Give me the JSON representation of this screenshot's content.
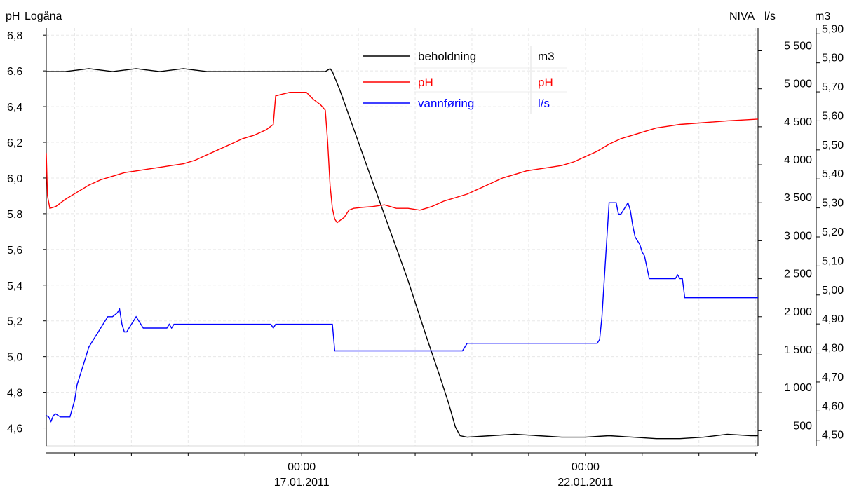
{
  "header": {
    "ph_unit": "pH",
    "station": "Logåna",
    "niva_label": "NIVA",
    "ls_unit": "l/s",
    "m3_unit": "m3"
  },
  "chart_data": {
    "type": "line",
    "x_unit": "hours",
    "x_ticks": [
      {
        "x": 0,
        "time": "00:00",
        "date": "17.01.2011"
      },
      {
        "x": 120,
        "time": "00:00",
        "date": "22.01.2011"
      }
    ],
    "x_range": [
      -108,
      193
    ],
    "axes": {
      "ph": {
        "range": [
          4.5,
          6.84
        ],
        "ticks": [
          "4,6",
          "4,8",
          "5,0",
          "5,2",
          "5,4",
          "5,6",
          "5,8",
          "6,0",
          "6,2",
          "6,4",
          "6,6",
          "6,8"
        ],
        "tick_values": [
          4.6,
          4.8,
          5.0,
          5.2,
          5.4,
          5.6,
          5.8,
          6.0,
          6.2,
          6.4,
          6.6,
          6.8
        ]
      },
      "flow": {
        "range": [
          300,
          5800
        ],
        "ticks": [
          "500",
          "1 000",
          "1 500",
          "2 000",
          "2 500",
          "3 000",
          "3 500",
          "4 000",
          "4 500",
          "5 000",
          "5 500"
        ],
        "tick_values": [
          500,
          1000,
          1500,
          2000,
          2500,
          3000,
          3500,
          4000,
          4500,
          5000,
          5500
        ]
      },
      "m3": {
        "range": [
          4.48,
          5.92
        ],
        "ticks": [
          "4,50",
          "4,60",
          "4,70",
          "4,80",
          "4,90",
          "5,00",
          "5,10",
          "5,20",
          "5,30",
          "5,40",
          "5,50",
          "5,60",
          "5,70",
          "5,80",
          "5,90"
        ],
        "tick_values": [
          4.5,
          4.6,
          4.7,
          4.8,
          4.9,
          5.0,
          5.1,
          5.2,
          5.3,
          5.4,
          5.5,
          5.6,
          5.7,
          5.8,
          5.9
        ]
      }
    },
    "grid": true,
    "legend_position": "top-center",
    "series": [
      {
        "name": "beholdning",
        "unit": "m3",
        "axis": "m3",
        "color": "#000000",
        "points": [
          [
            -108,
            5.77
          ],
          [
            -100,
            5.77
          ],
          [
            -90,
            5.78
          ],
          [
            -80,
            5.77
          ],
          [
            -70,
            5.78
          ],
          [
            -60,
            5.77
          ],
          [
            -50,
            5.78
          ],
          [
            -40,
            5.77
          ],
          [
            -30,
            5.77
          ],
          [
            -20,
            5.77
          ],
          [
            -10,
            5.77
          ],
          [
            0,
            5.77
          ],
          [
            10,
            5.77
          ],
          [
            11,
            5.775
          ],
          [
            12,
            5.78
          ],
          [
            13,
            5.77
          ],
          [
            16,
            5.71
          ],
          [
            30,
            5.39
          ],
          [
            45,
            5.05
          ],
          [
            53,
            4.85
          ],
          [
            58,
            4.73
          ],
          [
            62,
            4.63
          ],
          [
            65,
            4.545
          ],
          [
            67,
            4.515
          ],
          [
            70,
            4.51
          ],
          [
            80,
            4.515
          ],
          [
            90,
            4.52
          ],
          [
            100,
            4.515
          ],
          [
            110,
            4.51
          ],
          [
            120,
            4.51
          ],
          [
            130,
            4.515
          ],
          [
            140,
            4.51
          ],
          [
            150,
            4.505
          ],
          [
            160,
            4.505
          ],
          [
            170,
            4.51
          ],
          [
            180,
            4.52
          ],
          [
            190,
            4.515
          ],
          [
            193,
            4.515
          ]
        ]
      },
      {
        "name": "pH",
        "unit": "pH",
        "axis": "ph",
        "color": "#ff0000",
        "points": [
          [
            -108,
            6.14
          ],
          [
            -107.5,
            5.9
          ],
          [
            -106.5,
            5.83
          ],
          [
            -104,
            5.84
          ],
          [
            -100,
            5.88
          ],
          [
            -95,
            5.92
          ],
          [
            -90,
            5.96
          ],
          [
            -85,
            5.99
          ],
          [
            -80,
            6.01
          ],
          [
            -75,
            6.03
          ],
          [
            -70,
            6.04
          ],
          [
            -65,
            6.05
          ],
          [
            -60,
            6.06
          ],
          [
            -55,
            6.07
          ],
          [
            -50,
            6.08
          ],
          [
            -45,
            6.1
          ],
          [
            -40,
            6.13
          ],
          [
            -35,
            6.16
          ],
          [
            -30,
            6.19
          ],
          [
            -25,
            6.22
          ],
          [
            -20,
            6.24
          ],
          [
            -15,
            6.27
          ],
          [
            -12,
            6.3
          ],
          [
            -11,
            6.46
          ],
          [
            -8,
            6.47
          ],
          [
            -5,
            6.48
          ],
          [
            2,
            6.48
          ],
          [
            5,
            6.44
          ],
          [
            8,
            6.41
          ],
          [
            10,
            6.38
          ],
          [
            11,
            6.2
          ],
          [
            12,
            5.96
          ],
          [
            13,
            5.83
          ],
          [
            14,
            5.77
          ],
          [
            15,
            5.75
          ],
          [
            16,
            5.76
          ],
          [
            18,
            5.78
          ],
          [
            20,
            5.82
          ],
          [
            22,
            5.83
          ],
          [
            25,
            5.835
          ],
          [
            30,
            5.84
          ],
          [
            35,
            5.85
          ],
          [
            40,
            5.83
          ],
          [
            45,
            5.83
          ],
          [
            50,
            5.82
          ],
          [
            55,
            5.84
          ],
          [
            60,
            5.87
          ],
          [
            65,
            5.89
          ],
          [
            70,
            5.91
          ],
          [
            75,
            5.94
          ],
          [
            80,
            5.97
          ],
          [
            85,
            6.0
          ],
          [
            90,
            6.02
          ],
          [
            95,
            6.04
          ],
          [
            100,
            6.05
          ],
          [
            105,
            6.06
          ],
          [
            110,
            6.07
          ],
          [
            115,
            6.09
          ],
          [
            120,
            6.12
          ],
          [
            125,
            6.15
          ],
          [
            130,
            6.19
          ],
          [
            135,
            6.22
          ],
          [
            140,
            6.24
          ],
          [
            145,
            6.26
          ],
          [
            150,
            6.28
          ],
          [
            155,
            6.29
          ],
          [
            160,
            6.3
          ],
          [
            170,
            6.31
          ],
          [
            180,
            6.32
          ],
          [
            193,
            6.33
          ]
        ]
      },
      {
        "name": "vannføring",
        "unit": "l/s",
        "axis": "flow",
        "color": "#0000ff",
        "points": [
          [
            -108,
            700
          ],
          [
            -107,
            680
          ],
          [
            -106,
            620
          ],
          [
            -105,
            700
          ],
          [
            -104,
            720
          ],
          [
            -103,
            700
          ],
          [
            -102,
            680
          ],
          [
            -98,
            680
          ],
          [
            -96,
            900
          ],
          [
            -95,
            1100
          ],
          [
            -94,
            1200
          ],
          [
            -93,
            1300
          ],
          [
            -92,
            1400
          ],
          [
            -91,
            1500
          ],
          [
            -90,
            1600
          ],
          [
            -88,
            1700
          ],
          [
            -86,
            1800
          ],
          [
            -84,
            1900
          ],
          [
            -82,
            2000
          ],
          [
            -80,
            2000
          ],
          [
            -78,
            2050
          ],
          [
            -77,
            2100
          ],
          [
            -76,
            1900
          ],
          [
            -75,
            1800
          ],
          [
            -74,
            1800
          ],
          [
            -73,
            1850
          ],
          [
            -72,
            1900
          ],
          [
            -71,
            1950
          ],
          [
            -70,
            2000
          ],
          [
            -69,
            1950
          ],
          [
            -68,
            1900
          ],
          [
            -67,
            1850
          ],
          [
            -65,
            1850
          ],
          [
            -60,
            1850
          ],
          [
            -57,
            1850
          ],
          [
            -56,
            1900
          ],
          [
            -55,
            1850
          ],
          [
            -54,
            1900
          ],
          [
            -50,
            1900
          ],
          [
            -40,
            1900
          ],
          [
            -30,
            1900
          ],
          [
            -13,
            1900
          ],
          [
            -12,
            1850
          ],
          [
            -11,
            1900
          ],
          [
            0,
            1900
          ],
          [
            10,
            1900
          ],
          [
            13,
            1900
          ],
          [
            14,
            1550
          ],
          [
            20,
            1550
          ],
          [
            30,
            1550
          ],
          [
            40,
            1550
          ],
          [
            50,
            1550
          ],
          [
            60,
            1550
          ],
          [
            68,
            1550
          ],
          [
            69,
            1600
          ],
          [
            70,
            1650
          ],
          [
            80,
            1650
          ],
          [
            90,
            1650
          ],
          [
            100,
            1650
          ],
          [
            115,
            1650
          ],
          [
            125,
            1650
          ],
          [
            126,
            1700
          ],
          [
            127,
            2000
          ],
          [
            128,
            2500
          ],
          [
            129,
            3000
          ],
          [
            130,
            3500
          ],
          [
            133,
            3500
          ],
          [
            134,
            3350
          ],
          [
            135,
            3350
          ],
          [
            136,
            3400
          ],
          [
            137,
            3450
          ],
          [
            138,
            3500
          ],
          [
            139,
            3400
          ],
          [
            140,
            3200
          ],
          [
            141,
            3050
          ],
          [
            143,
            2950
          ],
          [
            144,
            2850
          ],
          [
            145,
            2800
          ],
          [
            146,
            2650
          ],
          [
            147,
            2500
          ],
          [
            150,
            2500
          ],
          [
            155,
            2500
          ],
          [
            158,
            2500
          ],
          [
            159,
            2550
          ],
          [
            160,
            2500
          ],
          [
            161,
            2500
          ],
          [
            162,
            2250
          ],
          [
            170,
            2250
          ],
          [
            180,
            2250
          ],
          [
            193,
            2250
          ]
        ]
      }
    ]
  }
}
